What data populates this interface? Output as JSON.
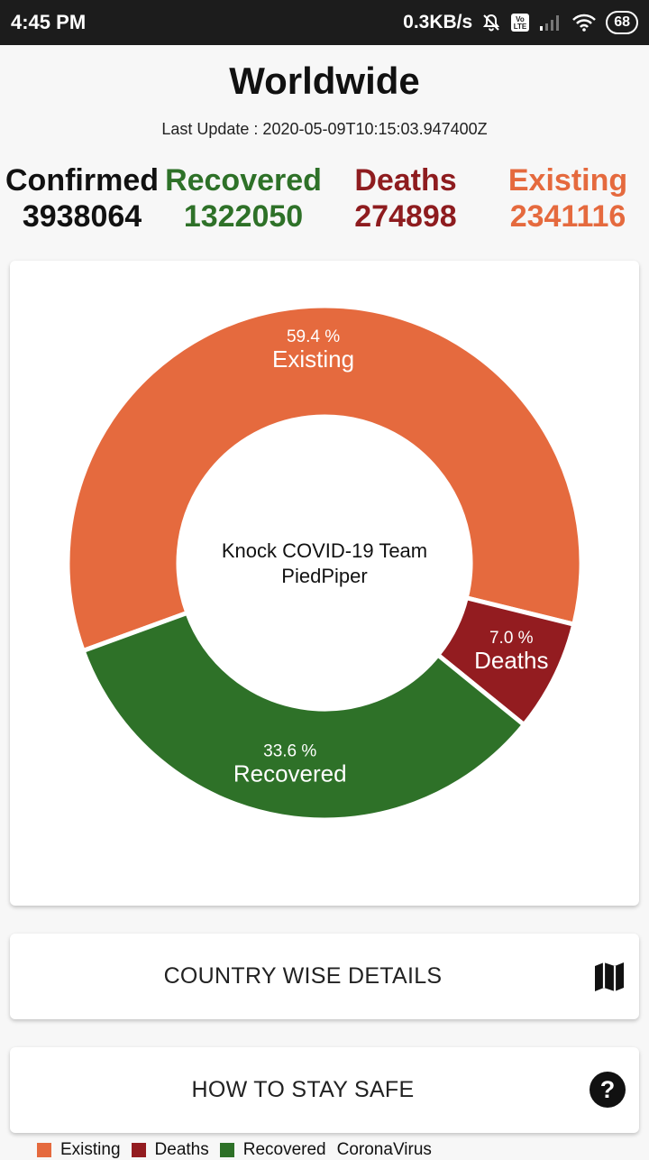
{
  "status_bar": {
    "time": "4:45 PM",
    "network_speed": "0.3KB/s",
    "battery": "68",
    "icons": [
      "mute-bell-icon",
      "volte-icon",
      "signal-icon",
      "wifi-icon",
      "battery-icon"
    ]
  },
  "header": {
    "title": "Worldwide",
    "last_update": "Last Update : 2020-05-09T10:15:03.947400Z"
  },
  "stats": {
    "confirmed": {
      "label": "Confirmed",
      "value": "3938064",
      "color": "#111111"
    },
    "recovered": {
      "label": "Recovered",
      "value": "1322050",
      "color": "#2e7128"
    },
    "deaths": {
      "label": "Deaths",
      "value": "274898",
      "color": "#8e1c1f"
    },
    "existing": {
      "label": "Existing",
      "value": "2341116",
      "color": "#e56a3e"
    }
  },
  "chart_data": {
    "type": "pie",
    "center_text": [
      "Knock COVID-19 Team",
      "PiedPiper"
    ],
    "series": [
      {
        "name": "Existing",
        "value": 59.4,
        "label": "59.4 %",
        "color": "#e56a3e"
      },
      {
        "name": "Deaths",
        "value": 7.0,
        "label": "7.0 %",
        "color": "#931c20"
      },
      {
        "name": "Recovered",
        "value": 33.6,
        "label": "33.6 %",
        "color": "#2e7128"
      }
    ],
    "legend": {
      "placement": "bottom-left",
      "entries": [
        "Existing",
        "Deaths",
        "Recovered"
      ],
      "description": "CoronaVirus"
    }
  },
  "buttons": {
    "country_wise": {
      "label": "COUNTRY WISE DETAILS",
      "icon": "map-icon"
    },
    "stay_safe": {
      "label": "HOW TO STAY SAFE",
      "icon": "help-icon"
    }
  }
}
